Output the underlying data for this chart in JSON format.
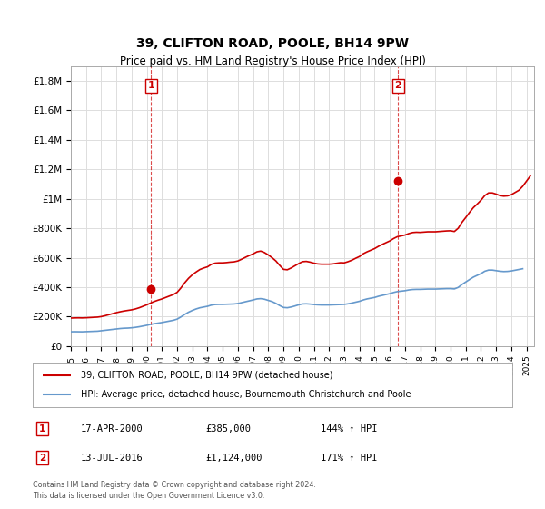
{
  "title": "39, CLIFTON ROAD, POOLE, BH14 9PW",
  "subtitle": "Price paid vs. HM Land Registry's House Price Index (HPI)",
  "ylabel_ticks": [
    "£0",
    "£200K",
    "£400K",
    "£600K",
    "£800K",
    "£1M",
    "£1.2M",
    "£1.4M",
    "£1.6M",
    "£1.8M"
  ],
  "ytick_values": [
    0,
    200000,
    400000,
    600000,
    800000,
    1000000,
    1200000,
    1400000,
    1600000,
    1800000
  ],
  "ylim": [
    0,
    1900000
  ],
  "xlim_start": 1995.0,
  "xlim_end": 2025.5,
  "transaction1": {
    "year": 2000.29,
    "price": 385000,
    "label": "1",
    "date": "17-APR-2000",
    "amount": "£385,000",
    "hpi": "144% ↑ HPI"
  },
  "transaction2": {
    "year": 2016.54,
    "price": 1124000,
    "label": "2",
    "date": "13-JUL-2016",
    "amount": "£1,124,000",
    "hpi": "171% ↑ HPI"
  },
  "legend_line1": "39, CLIFTON ROAD, POOLE, BH14 9PW (detached house)",
  "legend_line2": "HPI: Average price, detached house, Bournemouth Christchurch and Poole",
  "footer1": "Contains HM Land Registry data © Crown copyright and database right 2024.",
  "footer2": "This data is licensed under the Open Government Licence v3.0.",
  "red_color": "#cc0000",
  "blue_color": "#6699cc",
  "background_color": "#ffffff",
  "grid_color": "#dddddd",
  "hpi_data": [
    [
      1995.0,
      97000
    ],
    [
      1995.25,
      97500
    ],
    [
      1995.5,
      97200
    ],
    [
      1995.75,
      96800
    ],
    [
      1996.0,
      98000
    ],
    [
      1996.25,
      99000
    ],
    [
      1996.5,
      100000
    ],
    [
      1996.75,
      101000
    ],
    [
      1997.0,
      104000
    ],
    [
      1997.25,
      107000
    ],
    [
      1997.5,
      110000
    ],
    [
      1997.75,
      113000
    ],
    [
      1998.0,
      116000
    ],
    [
      1998.25,
      119000
    ],
    [
      1998.5,
      121000
    ],
    [
      1998.75,
      122000
    ],
    [
      1999.0,
      124000
    ],
    [
      1999.25,
      127000
    ],
    [
      1999.5,
      131000
    ],
    [
      1999.75,
      136000
    ],
    [
      2000.0,
      141000
    ],
    [
      2000.25,
      147000
    ],
    [
      2000.5,
      152000
    ],
    [
      2000.75,
      156000
    ],
    [
      2001.0,
      160000
    ],
    [
      2001.25,
      165000
    ],
    [
      2001.5,
      170000
    ],
    [
      2001.75,
      175000
    ],
    [
      2002.0,
      183000
    ],
    [
      2002.25,
      198000
    ],
    [
      2002.5,
      215000
    ],
    [
      2002.75,
      230000
    ],
    [
      2003.0,
      242000
    ],
    [
      2003.25,
      252000
    ],
    [
      2003.5,
      260000
    ],
    [
      2003.75,
      265000
    ],
    [
      2004.0,
      270000
    ],
    [
      2004.25,
      278000
    ],
    [
      2004.5,
      282000
    ],
    [
      2004.75,
      283000
    ],
    [
      2005.0,
      283000
    ],
    [
      2005.25,
      284000
    ],
    [
      2005.5,
      285000
    ],
    [
      2005.75,
      286000
    ],
    [
      2006.0,
      289000
    ],
    [
      2006.25,
      295000
    ],
    [
      2006.5,
      301000
    ],
    [
      2006.75,
      307000
    ],
    [
      2007.0,
      313000
    ],
    [
      2007.25,
      320000
    ],
    [
      2007.5,
      322000
    ],
    [
      2007.75,
      318000
    ],
    [
      2008.0,
      310000
    ],
    [
      2008.25,
      302000
    ],
    [
      2008.5,
      290000
    ],
    [
      2008.75,
      275000
    ],
    [
      2009.0,
      262000
    ],
    [
      2009.25,
      260000
    ],
    [
      2009.5,
      265000
    ],
    [
      2009.75,
      272000
    ],
    [
      2010.0,
      280000
    ],
    [
      2010.25,
      286000
    ],
    [
      2010.5,
      287000
    ],
    [
      2010.75,
      285000
    ],
    [
      2011.0,
      282000
    ],
    [
      2011.25,
      280000
    ],
    [
      2011.5,
      279000
    ],
    [
      2011.75,
      279000
    ],
    [
      2012.0,
      279000
    ],
    [
      2012.25,
      280000
    ],
    [
      2012.5,
      281000
    ],
    [
      2012.75,
      282000
    ],
    [
      2013.0,
      283000
    ],
    [
      2013.25,
      287000
    ],
    [
      2013.5,
      292000
    ],
    [
      2013.75,
      298000
    ],
    [
      2014.0,
      304000
    ],
    [
      2014.25,
      313000
    ],
    [
      2014.5,
      320000
    ],
    [
      2014.75,
      325000
    ],
    [
      2015.0,
      330000
    ],
    [
      2015.25,
      338000
    ],
    [
      2015.5,
      344000
    ],
    [
      2015.75,
      350000
    ],
    [
      2016.0,
      356000
    ],
    [
      2016.25,
      364000
    ],
    [
      2016.5,
      370000
    ],
    [
      2016.75,
      373000
    ],
    [
      2017.0,
      376000
    ],
    [
      2017.25,
      381000
    ],
    [
      2017.5,
      384000
    ],
    [
      2017.75,
      385000
    ],
    [
      2018.0,
      385000
    ],
    [
      2018.25,
      386000
    ],
    [
      2018.5,
      387000
    ],
    [
      2018.75,
      387000
    ],
    [
      2019.0,
      387000
    ],
    [
      2019.25,
      388000
    ],
    [
      2019.5,
      389000
    ],
    [
      2019.75,
      390000
    ],
    [
      2020.0,
      390000
    ],
    [
      2020.25,
      388000
    ],
    [
      2020.5,
      398000
    ],
    [
      2020.75,
      418000
    ],
    [
      2021.0,
      435000
    ],
    [
      2021.25,
      452000
    ],
    [
      2021.5,
      468000
    ],
    [
      2021.75,
      480000
    ],
    [
      2022.0,
      492000
    ],
    [
      2022.25,
      508000
    ],
    [
      2022.5,
      516000
    ],
    [
      2022.75,
      516000
    ],
    [
      2023.0,
      512000
    ],
    [
      2023.25,
      508000
    ],
    [
      2023.5,
      506000
    ],
    [
      2023.75,
      507000
    ],
    [
      2024.0,
      510000
    ],
    [
      2024.25,
      515000
    ],
    [
      2024.5,
      520000
    ],
    [
      2024.75,
      525000
    ]
  ],
  "red_data": [
    [
      1995.0,
      190000
    ],
    [
      1995.25,
      191000
    ],
    [
      1995.5,
      191500
    ],
    [
      1995.75,
      191000
    ],
    [
      1996.0,
      192000
    ],
    [
      1996.25,
      193500
    ],
    [
      1996.5,
      195000
    ],
    [
      1996.75,
      196500
    ],
    [
      1997.0,
      200000
    ],
    [
      1997.25,
      206000
    ],
    [
      1997.5,
      213000
    ],
    [
      1997.75,
      220000
    ],
    [
      1998.0,
      227000
    ],
    [
      1998.25,
      233000
    ],
    [
      1998.5,
      238000
    ],
    [
      1998.75,
      242000
    ],
    [
      1999.0,
      246000
    ],
    [
      1999.25,
      252000
    ],
    [
      1999.5,
      260000
    ],
    [
      1999.75,
      270000
    ],
    [
      2000.0,
      280000
    ],
    [
      2000.25,
      292000
    ],
    [
      2000.5,
      303000
    ],
    [
      2000.75,
      312000
    ],
    [
      2001.0,
      320000
    ],
    [
      2001.25,
      330000
    ],
    [
      2001.5,
      340000
    ],
    [
      2001.75,
      350000
    ],
    [
      2002.0,
      365000
    ],
    [
      2002.25,
      395000
    ],
    [
      2002.5,
      430000
    ],
    [
      2002.75,
      460000
    ],
    [
      2003.0,
      484000
    ],
    [
      2003.25,
      503000
    ],
    [
      2003.5,
      520000
    ],
    [
      2003.75,
      530000
    ],
    [
      2004.0,
      538000
    ],
    [
      2004.25,
      555000
    ],
    [
      2004.5,
      563000
    ],
    [
      2004.75,
      565000
    ],
    [
      2005.0,
      565000
    ],
    [
      2005.25,
      567000
    ],
    [
      2005.5,
      570000
    ],
    [
      2005.75,
      572000
    ],
    [
      2006.0,
      578000
    ],
    [
      2006.25,
      590000
    ],
    [
      2006.5,
      603000
    ],
    [
      2006.75,
      615000
    ],
    [
      2007.0,
      626000
    ],
    [
      2007.25,
      640000
    ],
    [
      2007.5,
      645000
    ],
    [
      2007.75,
      635000
    ],
    [
      2008.0,
      619000
    ],
    [
      2008.25,
      600000
    ],
    [
      2008.5,
      578000
    ],
    [
      2008.75,
      548000
    ],
    [
      2009.0,
      521000
    ],
    [
      2009.25,
      518000
    ],
    [
      2009.5,
      530000
    ],
    [
      2009.75,
      545000
    ],
    [
      2010.0,
      560000
    ],
    [
      2010.25,
      573000
    ],
    [
      2010.5,
      575000
    ],
    [
      2010.75,
      570000
    ],
    [
      2011.0,
      563000
    ],
    [
      2011.25,
      558000
    ],
    [
      2011.5,
      556000
    ],
    [
      2011.75,
      556000
    ],
    [
      2012.0,
      556000
    ],
    [
      2012.25,
      558000
    ],
    [
      2012.5,
      562000
    ],
    [
      2012.75,
      566000
    ],
    [
      2013.0,
      565000
    ],
    [
      2013.25,
      573000
    ],
    [
      2013.5,
      583000
    ],
    [
      2013.75,
      596000
    ],
    [
      2014.0,
      608000
    ],
    [
      2014.25,
      627000
    ],
    [
      2014.5,
      640000
    ],
    [
      2014.75,
      651000
    ],
    [
      2015.0,
      662000
    ],
    [
      2015.25,
      677000
    ],
    [
      2015.5,
      690000
    ],
    [
      2015.75,
      702000
    ],
    [
      2016.0,
      714000
    ],
    [
      2016.25,
      730000
    ],
    [
      2016.5,
      743000
    ],
    [
      2016.75,
      748000
    ],
    [
      2017.0,
      754000
    ],
    [
      2017.25,
      764000
    ],
    [
      2017.5,
      771000
    ],
    [
      2017.75,
      773000
    ],
    [
      2018.0,
      772000
    ],
    [
      2018.25,
      774000
    ],
    [
      2018.5,
      776000
    ],
    [
      2018.75,
      776000
    ],
    [
      2019.0,
      776000
    ],
    [
      2019.25,
      778000
    ],
    [
      2019.5,
      780000
    ],
    [
      2019.75,
      782000
    ],
    [
      2020.0,
      783000
    ],
    [
      2020.25,
      778000
    ],
    [
      2020.5,
      800000
    ],
    [
      2020.75,
      840000
    ],
    [
      2021.0,
      873000
    ],
    [
      2021.25,
      908000
    ],
    [
      2021.5,
      940000
    ],
    [
      2021.75,
      964000
    ],
    [
      2022.0,
      990000
    ],
    [
      2022.25,
      1022000
    ],
    [
      2022.5,
      1040000
    ],
    [
      2022.75,
      1040000
    ],
    [
      2023.0,
      1032000
    ],
    [
      2023.25,
      1022000
    ],
    [
      2023.5,
      1018000
    ],
    [
      2023.75,
      1020000
    ],
    [
      2024.0,
      1028000
    ],
    [
      2024.25,
      1043000
    ],
    [
      2024.5,
      1058000
    ],
    [
      2024.75,
      1085000
    ],
    [
      2025.0,
      1120000
    ],
    [
      2025.25,
      1155000
    ]
  ]
}
